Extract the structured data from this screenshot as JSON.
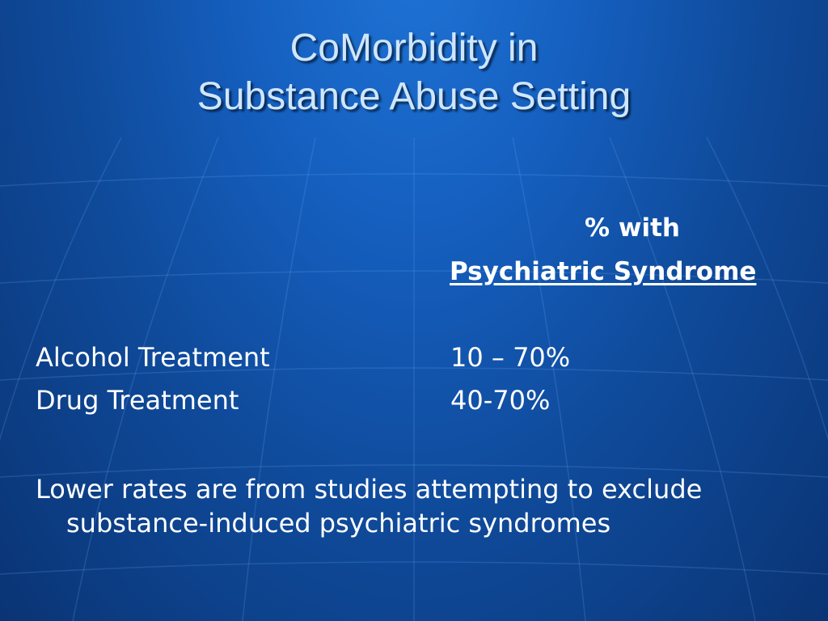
{
  "slide": {
    "title_line1": "CoMorbidity in",
    "title_line2": "Substance Abuse Setting",
    "column_header_line1": "% with",
    "column_header_line2": "Psychiatric Syndrome",
    "rows": [
      {
        "label": "Alcohol Treatment",
        "value": "10 – 70%"
      },
      {
        "label": "Drug Treatment",
        "value": "40-70%"
      }
    ],
    "note_line1": "Lower rates are from studies attempting to exclude",
    "note_line2": "substance-induced psychiatric syndromes"
  },
  "theme": {
    "background": "#155fbf",
    "title_color": "#cfe6ff",
    "text_color": "#ffffff"
  }
}
